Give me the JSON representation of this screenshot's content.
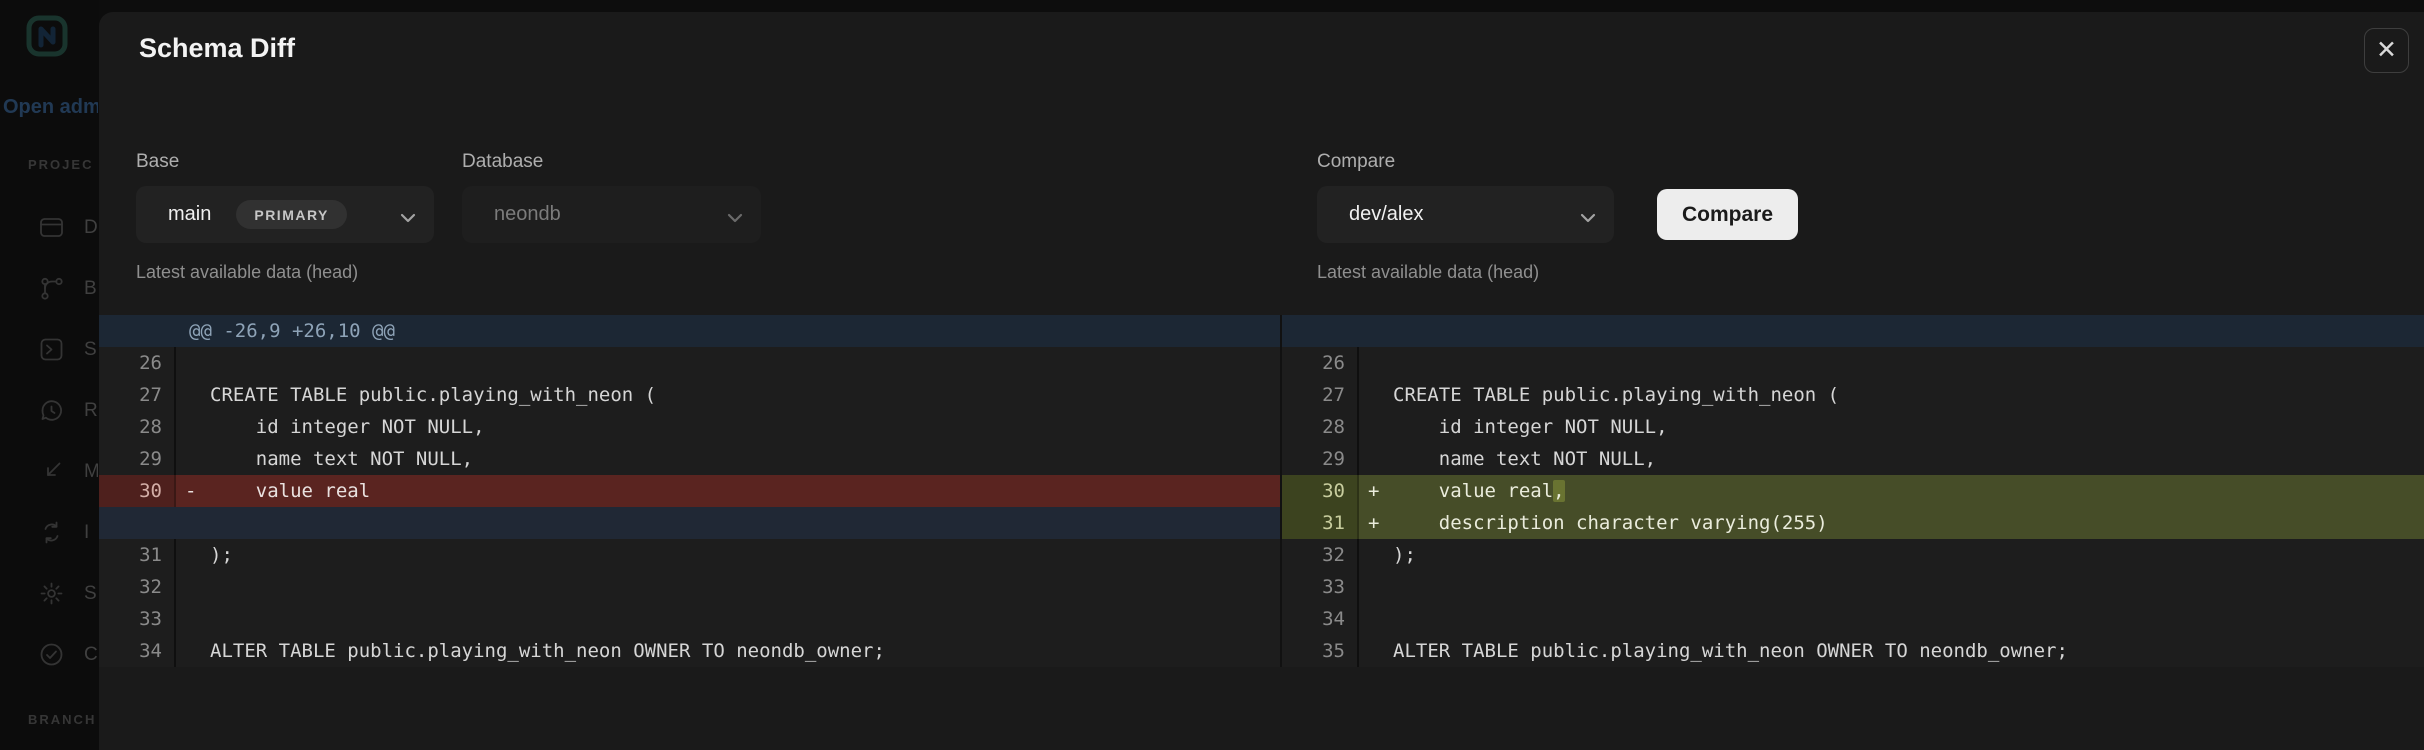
{
  "sidebar": {
    "open_link": "Open adm",
    "project_section": "PROJEC",
    "branch_section": "BRANCH",
    "items": [
      {
        "icon": "dashboard-icon",
        "label": "D"
      },
      {
        "icon": "branches-icon",
        "label": "B"
      },
      {
        "icon": "sql-editor-icon",
        "label": "S"
      },
      {
        "icon": "restore-icon",
        "label": "R"
      },
      {
        "icon": "monitoring-icon",
        "label": "M"
      },
      {
        "icon": "integrations-icon",
        "label": "I"
      },
      {
        "icon": "settings-icon",
        "label": "S"
      },
      {
        "icon": "checklist-icon",
        "label": "C"
      }
    ]
  },
  "modal": {
    "title": "Schema Diff",
    "close_label": "✕",
    "controls": {
      "base": {
        "label": "Base",
        "value": "main",
        "badge": "PRIMARY",
        "helper": "Latest available data (head)"
      },
      "database": {
        "label": "Database",
        "value": "neondb"
      },
      "compare": {
        "label": "Compare",
        "value": "dev/alex",
        "helper": "Latest available data (head)",
        "button": "Compare"
      }
    }
  },
  "diff": {
    "left": [
      {
        "kind": "hunk",
        "text": "@@ -26,9 +26,10 @@"
      },
      {
        "kind": "ctx",
        "num": "26",
        "code": ""
      },
      {
        "kind": "ctx",
        "num": "27",
        "code": "CREATE TABLE public.playing_with_neon ("
      },
      {
        "kind": "ctx",
        "num": "28",
        "code": "    id integer NOT NULL,"
      },
      {
        "kind": "ctx",
        "num": "29",
        "code": "    name text NOT NULL,"
      },
      {
        "kind": "del",
        "num": "30",
        "sign": "-",
        "code": "    value real"
      },
      {
        "kind": "filler"
      },
      {
        "kind": "ctx",
        "num": "31",
        "code": ");"
      },
      {
        "kind": "ctx",
        "num": "32",
        "code": ""
      },
      {
        "kind": "ctx",
        "num": "33",
        "code": ""
      },
      {
        "kind": "ctx",
        "num": "34",
        "code": "ALTER TABLE public.playing_with_neon OWNER TO neondb_owner;"
      }
    ],
    "right": [
      {
        "kind": "hunk",
        "text": ""
      },
      {
        "kind": "ctx",
        "num": "26",
        "code": ""
      },
      {
        "kind": "ctx",
        "num": "27",
        "code": "CREATE TABLE public.playing_with_neon ("
      },
      {
        "kind": "ctx",
        "num": "28",
        "code": "    id integer NOT NULL,"
      },
      {
        "kind": "ctx",
        "num": "29",
        "code": "    name text NOT NULL,"
      },
      {
        "kind": "add",
        "num": "30",
        "sign": "+",
        "code": "    value real",
        "hl": ","
      },
      {
        "kind": "add",
        "num": "31",
        "sign": "+",
        "code": "    description character varying(255)"
      },
      {
        "kind": "ctx",
        "num": "32",
        "code": ");"
      },
      {
        "kind": "ctx",
        "num": "33",
        "code": ""
      },
      {
        "kind": "ctx",
        "num": "34",
        "code": ""
      },
      {
        "kind": "ctx",
        "num": "35",
        "code": "ALTER TABLE public.playing_with_neon OWNER TO neondb_owner;"
      }
    ]
  },
  "colors": {
    "modal_bg": "#1a1a1a",
    "code_bg": "#1d1d1d",
    "hunk_bg": "#1c2734",
    "deleted_row": "#5a2420",
    "added_row": "#464d28",
    "filler_row": "#202835",
    "compare_button_bg": "#ededed",
    "link_blue": "#3a6391"
  }
}
